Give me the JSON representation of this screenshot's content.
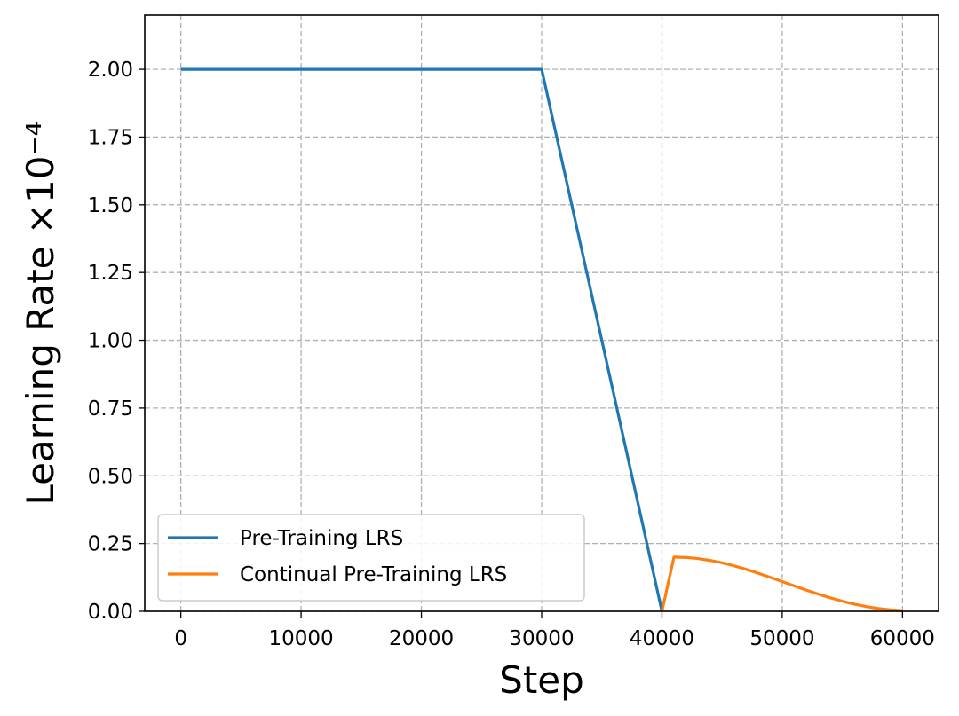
{
  "chart_data": {
    "type": "line",
    "xlabel": "Step",
    "ylabel": "Learning Rate ×10⁻⁴",
    "xlim": [
      -3000,
      63000
    ],
    "ylim": [
      0,
      2.2
    ],
    "xticks": [
      0,
      10000,
      20000,
      30000,
      40000,
      50000,
      60000
    ],
    "xtick_labels": [
      "0",
      "10000",
      "20000",
      "30000",
      "40000",
      "50000",
      "60000"
    ],
    "yticks": [
      0,
      0.25,
      0.5,
      0.75,
      1.0,
      1.25,
      1.5,
      1.75,
      2.0
    ],
    "ytick_labels": [
      "0.00",
      "0.25",
      "0.50",
      "0.75",
      "1.00",
      "1.25",
      "1.50",
      "1.75",
      "2.00"
    ],
    "grid": true,
    "legend_position": "lower-left",
    "series": [
      {
        "name": "Pre-Training LRS",
        "color": "#1f77b4",
        "x": [
          0,
          30000,
          40000
        ],
        "y": [
          2.0,
          2.0,
          0.0
        ]
      },
      {
        "name": "Continual Pre-Training LRS",
        "color": "#ff7f0e",
        "x": [
          40000,
          41000,
          42000,
          43000,
          44000,
          45000,
          46000,
          47000,
          48000,
          49000,
          50000,
          51000,
          52000,
          53000,
          54000,
          55000,
          56000,
          57000,
          58000,
          59000,
          60000
        ],
        "y": [
          0.0,
          0.2,
          0.1986,
          0.1945,
          0.1879,
          0.1789,
          0.1678,
          0.1549,
          0.1406,
          0.1253,
          0.1095,
          0.0937,
          0.0782,
          0.0634,
          0.0497,
          0.0372,
          0.0264,
          0.0173,
          0.0102,
          0.0053,
          0.0024
        ]
      }
    ]
  }
}
